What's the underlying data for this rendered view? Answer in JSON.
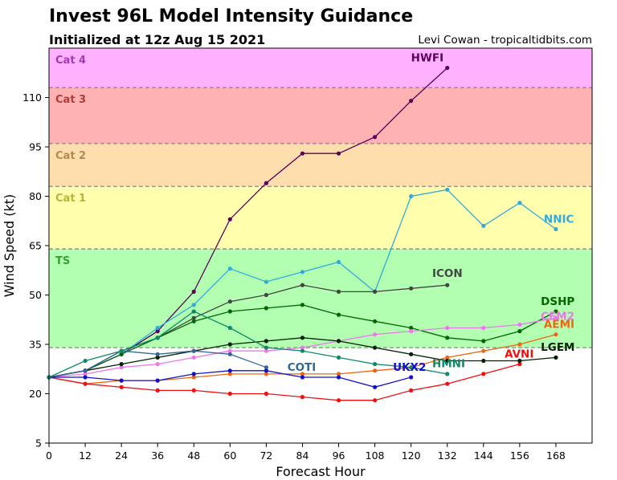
{
  "title": "Invest 96L Model Intensity Guidance",
  "subtitle": "Initialized at 12z Aug 15 2021",
  "credit": "Levi Cowan - tropicaltidbits.com",
  "chart_data": {
    "type": "line",
    "xlabel": "Forecast Hour",
    "ylabel": "Wind Speed (kt)",
    "xlim": [
      0,
      180
    ],
    "ylim": [
      5,
      125
    ],
    "xticks": [
      0,
      12,
      24,
      36,
      48,
      60,
      72,
      84,
      96,
      108,
      120,
      132,
      144,
      156,
      168
    ],
    "yticks": [
      5,
      20,
      35,
      50,
      65,
      80,
      95,
      110
    ],
    "bands": [
      {
        "name": "TS",
        "from": 34,
        "to": 64,
        "fill": "#b2ffb2",
        "label_color": "#33a033"
      },
      {
        "name": "Cat 1",
        "from": 64,
        "to": 83,
        "fill": "#ffffad",
        "label_color": "#b5b53a"
      },
      {
        "name": "Cat 2",
        "from": 83,
        "to": 96,
        "fill": "#ffdeae",
        "label_color": "#b5894e"
      },
      {
        "name": "Cat 3",
        "from": 96,
        "to": 113,
        "fill": "#ffb2b2",
        "label_color": "#b23a3a"
      },
      {
        "name": "Cat 4",
        "from": 113,
        "to": 125,
        "fill": "#ffb2ff",
        "label_color": "#a23ab5"
      }
    ],
    "series": [
      {
        "name": "HWFI",
        "color": "#5b005b",
        "x": [
          0,
          12,
          24,
          36,
          48,
          60,
          72,
          84,
          96,
          108,
          120,
          132
        ],
        "values": [
          25,
          27,
          32,
          39,
          51,
          73,
          84,
          93,
          93,
          98,
          109,
          119
        ],
        "label_x": 120,
        "label_y": 121
      },
      {
        "name": "NNIC",
        "color": "#33aadd",
        "x": [
          0,
          12,
          24,
          36,
          48,
          60,
          72,
          84,
          96,
          108,
          120,
          132,
          144,
          156,
          168
        ],
        "values": [
          25,
          27,
          32,
          40,
          47,
          58,
          54,
          57,
          60,
          51,
          80,
          82,
          71,
          78,
          70
        ],
        "label_x": 164,
        "label_y": 72
      },
      {
        "name": "ICON",
        "color": "#444444",
        "x": [
          0,
          12,
          24,
          36,
          48,
          60,
          72,
          84,
          96,
          108,
          120,
          132
        ],
        "values": [
          25,
          27,
          33,
          37,
          43,
          48,
          50,
          53,
          51,
          51,
          52,
          53
        ],
        "label_x": 127,
        "label_y": 55.5
      },
      {
        "name": "DSHP",
        "color": "#006600",
        "x": [
          0,
          12,
          24,
          36,
          48,
          60,
          72,
          84,
          96,
          108,
          120,
          132,
          144,
          156,
          168
        ],
        "values": [
          25,
          27,
          32,
          37,
          42,
          45,
          46,
          47,
          44,
          42,
          40,
          37,
          36,
          39,
          45
        ],
        "label_x": 163,
        "label_y": 47
      },
      {
        "name": "CEM2",
        "color": "#ee77ee",
        "x": [
          0,
          12,
          24,
          36,
          48,
          60,
          72,
          84,
          96,
          108,
          120,
          132,
          144,
          156,
          168
        ],
        "values": [
          25,
          26,
          28,
          29,
          31,
          33,
          33,
          34,
          36,
          38,
          39,
          40,
          40,
          41,
          43
        ],
        "label_x": 163,
        "label_y": 42.5
      },
      {
        "name": "AEMI",
        "color": "#ee6611",
        "x": [
          0,
          12,
          24,
          36,
          48,
          60,
          72,
          84,
          96,
          108,
          120,
          132,
          144,
          156,
          168
        ],
        "values": [
          25,
          23,
          24,
          24,
          25,
          26,
          26,
          26,
          26,
          27,
          28,
          31,
          33,
          35,
          38
        ],
        "label_x": 164,
        "label_y": 40
      },
      {
        "name": "AVNI",
        "color": "#ee1111",
        "x": [
          0,
          12,
          24,
          36,
          48,
          60,
          72,
          84,
          96,
          108,
          120,
          132,
          144,
          156
        ],
        "values": [
          25,
          23,
          22,
          21,
          21,
          20,
          20,
          19,
          18,
          18,
          21,
          23,
          26,
          29
        ],
        "label_x": 151,
        "label_y": 31
      },
      {
        "name": "LGEM",
        "color": "#002200",
        "x": [
          0,
          12,
          24,
          36,
          48,
          60,
          72,
          84,
          96,
          108,
          120,
          132,
          144,
          156,
          168
        ],
        "values": [
          25,
          27,
          29,
          31,
          33,
          35,
          36,
          37,
          36,
          34,
          32,
          30,
          30,
          30,
          31
        ],
        "label_x": 163,
        "label_y": 33
      },
      {
        "name": "COTI",
        "color": "#336699",
        "x": [
          0,
          12,
          24,
          36,
          48,
          60,
          72
        ],
        "values": [
          25,
          27,
          33,
          32,
          33,
          32,
          28
        ],
        "label_x": 79,
        "label_y": 27
      },
      {
        "name": "UKX2",
        "color": "#1111cc",
        "x": [
          0,
          12,
          24,
          36,
          48,
          60,
          72,
          84,
          96,
          108,
          120
        ],
        "values": [
          25,
          25,
          24,
          24,
          26,
          27,
          27,
          25,
          25,
          22,
          25
        ],
        "label_x": 114,
        "label_y": 27
      },
      {
        "name": "HMNI",
        "color": "#118866",
        "x": [
          0,
          12,
          24,
          36,
          48,
          60,
          72,
          84,
          96,
          108,
          120,
          132
        ],
        "values": [
          25,
          30,
          33,
          37,
          45,
          40,
          34,
          33,
          31,
          29,
          28,
          26
        ],
        "label_x": 127,
        "label_y": 28
      }
    ]
  }
}
